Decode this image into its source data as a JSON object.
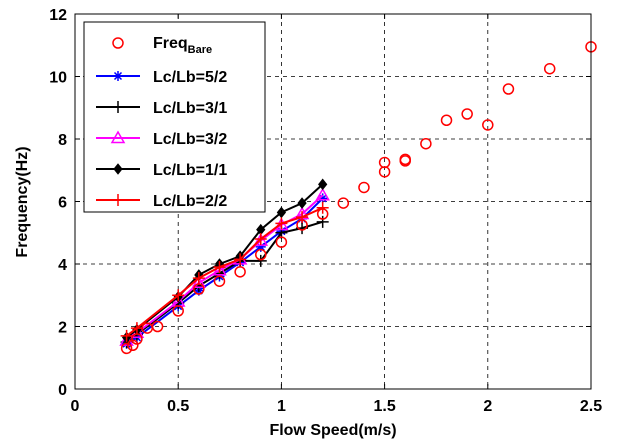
{
  "chart_data": {
    "type": "line",
    "title": "",
    "xlabel": "Flow Speed(m/s)",
    "ylabel": "Frequency(Hz)",
    "xlim": [
      0,
      2.5
    ],
    "ylim": [
      0,
      12
    ],
    "xticks": [
      "0",
      "0.5",
      "1",
      "1.5",
      "2",
      "2.5"
    ],
    "yticks": [
      "0",
      "2",
      "4",
      "6",
      "8",
      "10",
      "12"
    ],
    "grid": true,
    "grid_style": "dashed",
    "legend_position": "top-left",
    "bare": {
      "name_main": "Freq",
      "name_sub": "Bare",
      "color": "#ff0000",
      "marker": "circle",
      "x": [
        0.25,
        0.28,
        0.3,
        0.35,
        0.4,
        0.5,
        0.6,
        0.7,
        0.8,
        0.9,
        1.0,
        1.1,
        1.2,
        1.3,
        1.4,
        1.5,
        1.5,
        1.6,
        1.6,
        1.7,
        1.8,
        1.9,
        2.0,
        2.1,
        2.3,
        2.5
      ],
      "y": [
        1.3,
        1.4,
        1.6,
        1.95,
        2.0,
        2.5,
        3.2,
        3.45,
        3.75,
        4.3,
        4.7,
        5.25,
        5.6,
        5.95,
        6.45,
        6.95,
        7.25,
        7.3,
        7.35,
        7.85,
        8.6,
        8.8,
        8.45,
        9.6,
        10.25,
        10.95
      ]
    },
    "series": [
      {
        "name": "Lc/Lb=5/2",
        "color": "#0000ff",
        "marker": "star",
        "x": [
          0.25,
          0.3,
          0.5,
          0.6,
          0.7,
          0.8,
          0.9,
          1.0,
          1.1,
          1.2
        ],
        "y": [
          1.45,
          1.65,
          2.65,
          3.15,
          3.6,
          4.05,
          4.55,
          5.05,
          5.45,
          6.1
        ]
      },
      {
        "name": "Lc/Lb=3/1",
        "color": "#000000",
        "marker": "plus",
        "x": [
          0.25,
          0.3,
          0.5,
          0.6,
          0.7,
          0.8,
          0.9,
          1.0,
          1.1,
          1.2
        ],
        "y": [
          1.5,
          1.75,
          2.75,
          3.3,
          3.7,
          4.1,
          4.1,
          5.0,
          5.15,
          5.35
        ]
      },
      {
        "name": "Lc/Lb=3/2",
        "color": "#ff00ff",
        "marker": "triangle",
        "x": [
          0.25,
          0.3,
          0.5,
          0.6,
          0.7,
          0.8,
          0.9,
          1.0,
          1.1,
          1.2
        ],
        "y": [
          1.55,
          1.8,
          2.8,
          3.4,
          3.8,
          4.15,
          4.75,
          5.25,
          5.6,
          6.2
        ]
      },
      {
        "name": "Lc/Lb=1/1",
        "color": "#000000",
        "marker": "diamond",
        "x": [
          0.25,
          0.3,
          0.5,
          0.6,
          0.7,
          0.8,
          0.9,
          1.0,
          1.1,
          1.2
        ],
        "y": [
          1.65,
          1.9,
          2.95,
          3.65,
          4.0,
          4.25,
          5.1,
          5.65,
          5.95,
          6.55
        ]
      },
      {
        "name": "Lc/Lb=2/2",
        "color": "#ff0000",
        "marker": "plus",
        "x": [
          0.25,
          0.3,
          0.5,
          0.6,
          0.7,
          0.8,
          0.9,
          1.0,
          1.1,
          1.2
        ],
        "y": [
          1.7,
          1.95,
          3.0,
          3.55,
          3.9,
          4.15,
          4.8,
          5.3,
          5.5,
          5.8
        ]
      }
    ]
  }
}
